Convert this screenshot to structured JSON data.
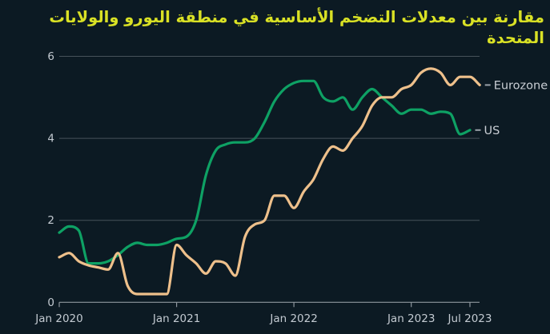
{
  "chart_data": {
    "type": "line",
    "title": "مقارنة بين معدلات التضخم الأساسية في منطقة اليورو والولايات المتحدة",
    "frequency": "monthly",
    "x_start": "Jan 2020",
    "x_tick_labels": [
      "Jan 2020",
      "Jan 2021",
      "Jan 2022",
      "Jan 2023",
      "Jul 2023"
    ],
    "x_tick_month_index": [
      0,
      12,
      24,
      36,
      42
    ],
    "y_ticks": [
      0,
      2,
      4,
      6
    ],
    "ylim": [
      0,
      6
    ],
    "grid": "horizontal",
    "legend_position": "line-end",
    "series": [
      {
        "name": "Eurozone",
        "color": "#EEC08B",
        "values": [
          1.1,
          1.2,
          1.0,
          0.9,
          0.85,
          0.8,
          1.2,
          0.4,
          0.2,
          0.2,
          0.2,
          0.2,
          1.4,
          1.15,
          0.95,
          0.7,
          1.0,
          0.95,
          0.65,
          1.6,
          1.9,
          2.0,
          2.6,
          2.6,
          2.3,
          2.7,
          3.0,
          3.5,
          3.8,
          3.7,
          4.0,
          4.3,
          4.8,
          5.0,
          5.0,
          5.2,
          5.3,
          5.6,
          5.7,
          5.6,
          5.3,
          5.5,
          5.5,
          5.3
        ]
      },
      {
        "name": "US",
        "color": "#0EA164",
        "values": [
          1.7,
          1.85,
          1.75,
          0.95,
          0.95,
          1.0,
          1.15,
          1.35,
          1.45,
          1.4,
          1.4,
          1.45,
          1.55,
          1.6,
          2.0,
          3.1,
          3.7,
          3.85,
          3.9,
          3.9,
          4.0,
          4.4,
          4.9,
          5.2,
          5.35,
          5.4,
          5.4,
          5.0,
          4.9,
          5.0,
          4.7,
          5.0,
          5.2,
          5.0,
          4.8,
          4.6,
          4.7,
          4.7,
          4.6,
          4.65,
          4.6,
          4.1,
          4.2
        ]
      }
    ]
  },
  "colors": {
    "background": "#0C1A23",
    "title": "#D9E125",
    "grid": "#46525A",
    "axis": "#8E979E",
    "tick_label": "#C3CAD1",
    "legend_label": "#C9CED4",
    "legend_dash": "#9AA2A9"
  }
}
